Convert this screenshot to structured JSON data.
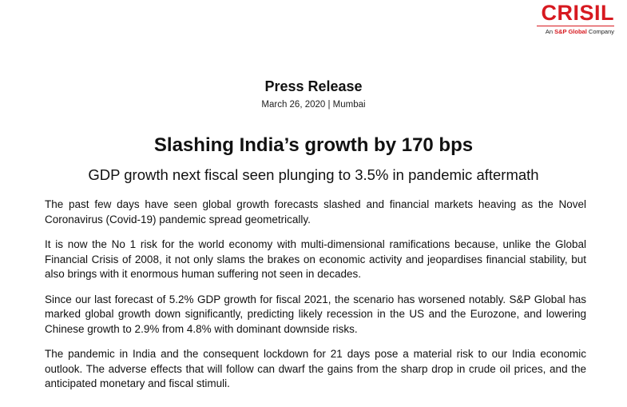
{
  "logo": {
    "wordmark": "CRISIL",
    "tagline_prefix": "An ",
    "tagline_brand": "S&P Global",
    "tagline_suffix": " Company",
    "color": "#d71920"
  },
  "header": {
    "label": "Press Release",
    "dateline": "March 26, 2020 | Mumbai"
  },
  "headline": "Slashing India’s growth by 170 bps",
  "subheadline": "GDP growth next fiscal seen plunging to 3.5% in pandemic aftermath",
  "paragraphs": [
    "The past few days have seen global growth forecasts slashed and financial markets heaving as the Novel Coronavirus (Covid-19) pandemic spread geometrically.",
    "It is now the No 1 risk for the world economy with multi-dimensional ramifications because, unlike the Global Financial Crisis of 2008, it not only slams the brakes on economic activity and jeopardises financial stability, but also brings with it enormous human suffering not seen in decades.",
    "Since our last forecast of 5.2% GDP growth for fiscal 2021, the scenario has worsened notably. S&P Global has marked global growth down significantly, predicting likely recession in the US and the Eurozone, and lowering Chinese growth to 2.9% from 4.8% with dominant downside risks.",
    "The pandemic in India and the consequent lockdown for 21 days pose a material risk to our India economic outlook. The adverse effects that will follow can dwarf the gains from the sharp drop in crude oil prices, and the anticipated monetary and fiscal stimuli."
  ]
}
